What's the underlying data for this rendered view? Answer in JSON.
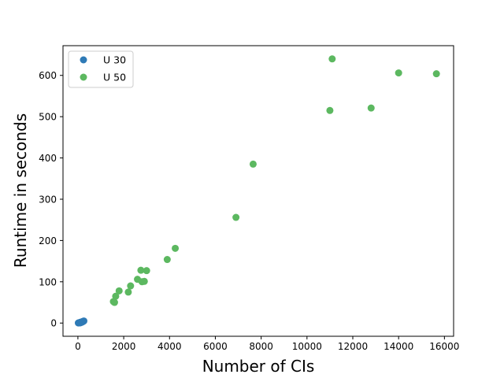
{
  "chart_data": {
    "type": "scatter",
    "xlabel": "Number of CIs",
    "ylabel": "Runtime in seconds",
    "xlim": [
      -650,
      16400
    ],
    "ylim": [
      -32,
      672
    ],
    "xticks": [
      0,
      2000,
      4000,
      6000,
      8000,
      10000,
      12000,
      14000,
      16000
    ],
    "yticks": [
      0,
      100,
      200,
      300,
      400,
      500,
      600
    ],
    "grid": false,
    "legend_position": "top-left",
    "series": [
      {
        "name": "U 30",
        "color": "#2e7ab6",
        "points": [
          [
            20,
            0.3
          ],
          [
            40,
            0.5
          ],
          [
            55,
            0.8
          ],
          [
            70,
            1.0
          ],
          [
            85,
            1.2
          ],
          [
            100,
            1.5
          ],
          [
            115,
            1.8
          ],
          [
            130,
            2.0
          ],
          [
            150,
            2.3
          ],
          [
            165,
            2.6
          ],
          [
            180,
            3.0
          ],
          [
            200,
            3.3
          ],
          [
            220,
            3.8
          ],
          [
            240,
            4.3
          ],
          [
            260,
            5.0
          ],
          [
            80,
            0.4
          ],
          [
            120,
            0.9
          ],
          [
            190,
            2.4
          ]
        ]
      },
      {
        "name": "U 50",
        "color": "#5cb860",
        "points": [
          [
            1550,
            52
          ],
          [
            1600,
            50
          ],
          [
            1650,
            65
          ],
          [
            1800,
            78
          ],
          [
            2200,
            75
          ],
          [
            2300,
            90
          ],
          [
            2600,
            106
          ],
          [
            2750,
            128
          ],
          [
            2800,
            100
          ],
          [
            2900,
            101
          ],
          [
            3000,
            127
          ],
          [
            3900,
            154
          ],
          [
            4250,
            181
          ],
          [
            6900,
            256
          ],
          [
            7650,
            385
          ],
          [
            11000,
            515
          ],
          [
            11100,
            640
          ],
          [
            12800,
            521
          ],
          [
            14000,
            606
          ],
          [
            15650,
            604
          ]
        ]
      }
    ]
  }
}
